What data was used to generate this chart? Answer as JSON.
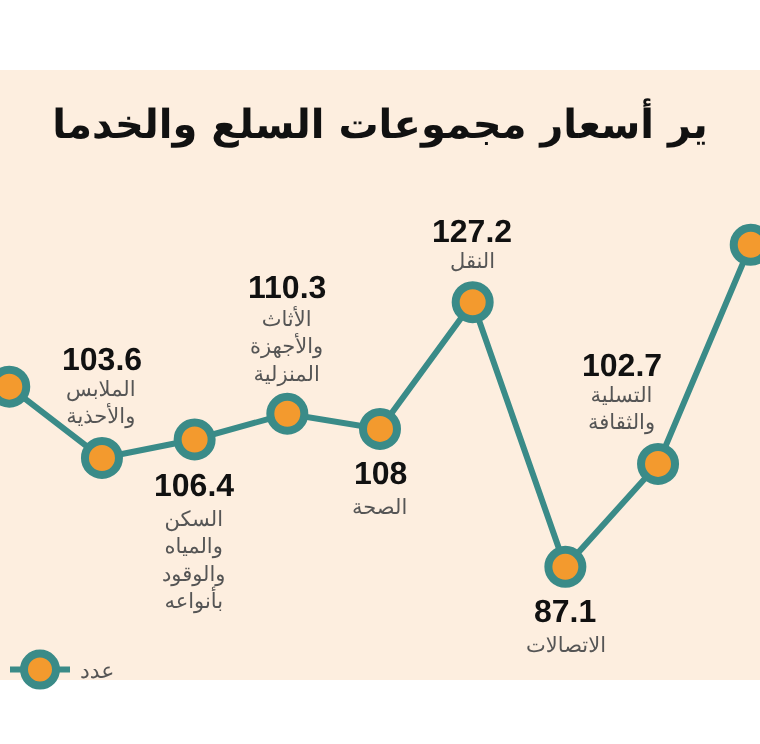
{
  "chart_data": {
    "type": "line",
    "title": "ير أسعار مجموعات السلع والخدما",
    "categories": [
      null,
      null,
      null,
      null,
      null,
      null,
      null,
      null,
      null
    ],
    "annotations": [
      "الملابس والأحذية",
      "السكن والمياه والوقود بأنواعه",
      "الأثاث والأجهزة المنزلية",
      "الصحة",
      "النقل",
      "الاتصالات",
      "التسلية والثقافة"
    ],
    "series": [
      {
        "name": "عدد",
        "color": "#3a8b88",
        "values": [
          114.4,
          103.6,
          106.4,
          110.3,
          108,
          127.2,
          87.1,
          102.7,
          135.9
        ],
        "value_labels": [
          null,
          "103.6",
          "106.4",
          "110.3",
          "108",
          "127.2",
          "87.1",
          "102.7",
          null
        ]
      }
    ],
    "marker": "circle",
    "line_style": "solid",
    "legend": "bottom left"
  }
}
